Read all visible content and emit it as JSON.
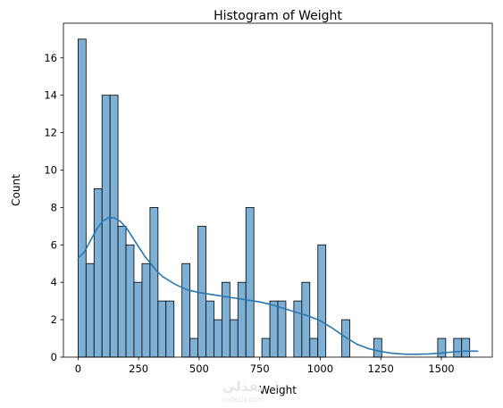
{
  "chart_data": {
    "type": "bar",
    "title": "Histogram of Weight",
    "xlabel": "Weight",
    "ylabel": "Count",
    "xlim": [
      -60.4,
      1710.4
    ],
    "ylim": [
      0,
      17.85
    ],
    "xticks": [
      0,
      250,
      500,
      750,
      1000,
      1250,
      1500
    ],
    "yticks": [
      0,
      2,
      4,
      6,
      8,
      10,
      12,
      14,
      16
    ],
    "bin_start": 0,
    "bin_width": 33,
    "counts": [
      17,
      5,
      9,
      14,
      14,
      7,
      6,
      4,
      5,
      8,
      3,
      3,
      0,
      5,
      1,
      7,
      3,
      2,
      4,
      2,
      4,
      8,
      0,
      1,
      3,
      3,
      0,
      3,
      4,
      1,
      6,
      0,
      0,
      2,
      0,
      0,
      0,
      1,
      0,
      0,
      0,
      0,
      0,
      0,
      0,
      1,
      0,
      1,
      1
    ],
    "kde": {
      "x": [
        0,
        25,
        50,
        75,
        100,
        125,
        150,
        175,
        200,
        225,
        250,
        275,
        300,
        325,
        350,
        400,
        450,
        500,
        550,
        600,
        650,
        700,
        750,
        800,
        850,
        900,
        950,
        1000,
        1050,
        1100,
        1150,
        1200,
        1250,
        1300,
        1350,
        1400,
        1450,
        1500,
        1550,
        1600,
        1650
      ],
      "y": [
        5.3,
        5.6,
        6.2,
        6.8,
        7.25,
        7.45,
        7.45,
        7.25,
        6.9,
        6.4,
        5.9,
        5.4,
        5.0,
        4.6,
        4.3,
        3.9,
        3.6,
        3.45,
        3.35,
        3.25,
        3.15,
        3.05,
        2.95,
        2.8,
        2.6,
        2.4,
        2.2,
        1.95,
        1.55,
        1.1,
        0.7,
        0.45,
        0.3,
        0.2,
        0.16,
        0.15,
        0.17,
        0.22,
        0.28,
        0.32,
        0.32
      ]
    },
    "bar_color": "#7eb0d5",
    "bar_edge_color": "#000000",
    "kde_color": "#2a77b0",
    "grid": false,
    "legend": "none"
  },
  "watermark": {
    "arabic": "نفذلي",
    "latin": "nafezly.com"
  }
}
